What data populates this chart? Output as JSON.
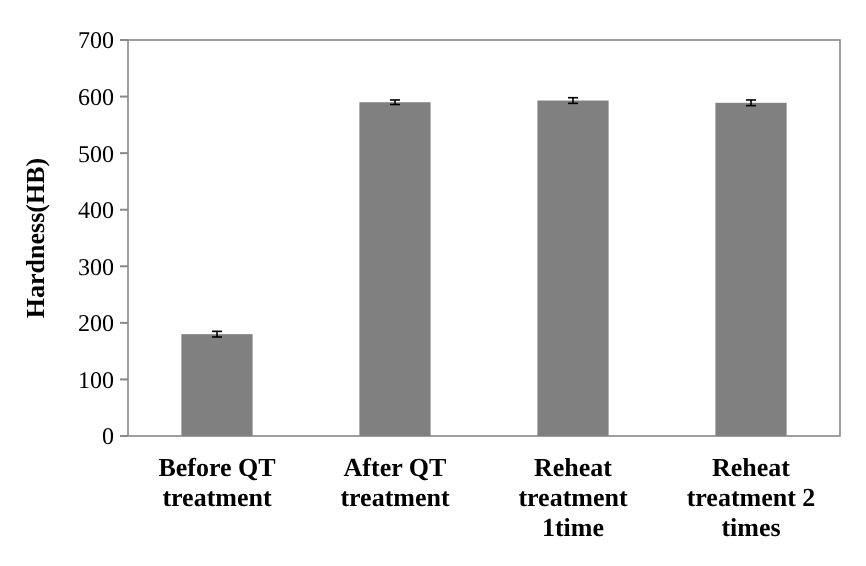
{
  "chart_data": {
    "type": "bar",
    "ylabel": "Hardness(HB)",
    "categories": [
      "Before QT treatment",
      "After QT treatment",
      "Reheat treatment 1time",
      "Reheat treatment 2 times"
    ],
    "values": [
      180,
      590,
      593,
      589
    ],
    "errors": [
      5,
      4,
      5,
      5
    ],
    "color": "#808080",
    "ylim": [
      0,
      700
    ],
    "yticks": [
      0,
      100,
      200,
      300,
      400,
      500,
      600,
      700
    ],
    "grid": false
  }
}
